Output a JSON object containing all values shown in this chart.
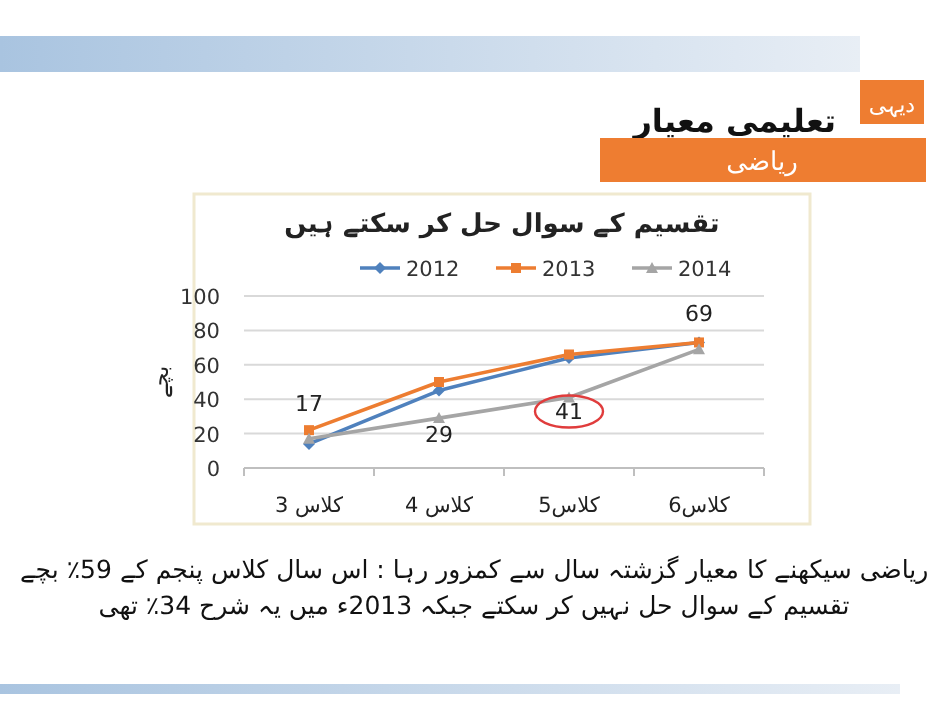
{
  "chart_data": {
    "type": "line",
    "title": "تقسیم کے سوال حل کر سکتے ہیں",
    "ylabel": "بچے",
    "categories": [
      "کلاس 3",
      "کلاس 4",
      "کلاس5",
      "کلاس6"
    ],
    "series": [
      {
        "name": "2012",
        "color": "#4f81bd",
        "marker": "diamond",
        "values": [
          14,
          45,
          64,
          73
        ]
      },
      {
        "name": "2013",
        "color": "#ed7d31",
        "marker": "square",
        "values": [
          22,
          50,
          66,
          73
        ]
      },
      {
        "name": "2014",
        "color": "#a5a5a5",
        "marker": "triangle",
        "values": [
          17,
          29,
          41,
          69
        ],
        "value_labels": [
          "17",
          "29",
          null,
          "69"
        ]
      }
    ],
    "ylim": [
      0,
      100
    ],
    "yticks": [
      0,
      20,
      40,
      60,
      80,
      100
    ],
    "grid": "y",
    "legend": "top",
    "annotations": [
      {
        "text": "41",
        "x": "کلاس5",
        "y": 41
      },
      "تعلیمی معیار",
      "ریاضی",
      "دیہی",
      "ریاضی سیکھنے کا معیار گزشتہ سال سے کمزور رہا : اس سال کلاس پنجم کے 59٪ بچے",
      "تقسیم کے سوال حل نہیں کر سکتے جبکہ 2013ء میں یہ شرح 34٪ تھی"
    ]
  }
}
